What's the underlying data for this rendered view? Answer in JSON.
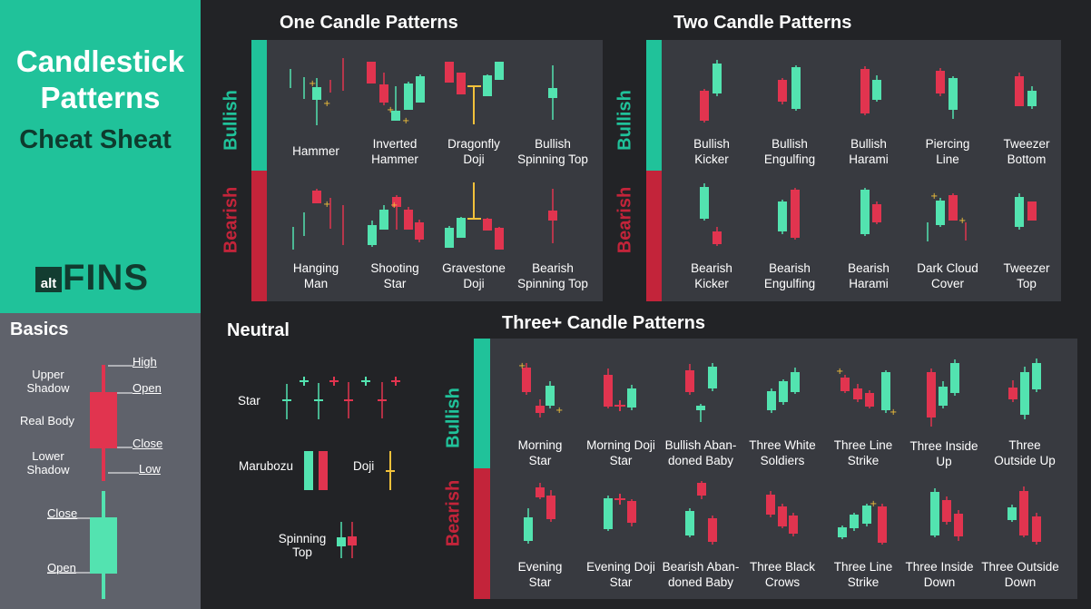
{
  "brand": {
    "title_line1": "Candlestick",
    "title_line2": "Patterns",
    "subtitle": "Cheat Sheat",
    "logo_small": "alt",
    "logo_large": "FINS"
  },
  "colors": {
    "bull": "#53e3b0",
    "bear": "#e1344f",
    "teal": "#20c29a",
    "red": "#c3243a",
    "panel": "#383a40",
    "bg": "#222326",
    "star": "#f2c13a"
  },
  "sections": {
    "one": "One Candle Patterns",
    "two": "Two Candle Patterns",
    "three": "Three+ Candle Patterns",
    "neutral": "Neutral",
    "basics": "Basics"
  },
  "side_labels": {
    "bullish": "Bullish",
    "bearish": "Bearish"
  },
  "one_candle": {
    "bullish": [
      "Hammer",
      "Inverted\nHammer",
      "Dragonfly\nDoji",
      "Bullish\nSpinning Top"
    ],
    "bearish": [
      "Hanging\nMan",
      "Shooting\nStar",
      "Gravestone\nDoji",
      "Bearish\nSpinning Top"
    ]
  },
  "two_candle": {
    "bullish": [
      "Bullish\nKicker",
      "Bullish\nEngulfing",
      "Bullish\nHarami",
      "Piercing\nLine",
      "Tweezer\nBottom"
    ],
    "bearish": [
      "Bearish\nKicker",
      "Bearish\nEngulfing",
      "Bearish\nHarami",
      "Dark Cloud\nCover",
      "Tweezer\nTop"
    ]
  },
  "three_candle": {
    "bullish": [
      "Morning\nStar",
      "Morning Doji\nStar",
      "Bullish Aban-\ndoned Baby",
      "Three White\nSoldiers",
      "Three Line\nStrike",
      "Three Inside\nUp",
      "Three\nOutside Up"
    ],
    "bearish": [
      "Evening\nStar",
      "Evening Doji\nStar",
      "Bearish Aban-\ndoned Baby",
      "Three Black\nCrows",
      "Three Line\nStrike",
      "Three Inside\nDown",
      "Three Outside\nDown"
    ]
  },
  "neutral": {
    "star": "Star",
    "marubozu": "Marubozu",
    "doji": "Doji",
    "spinning": "Spinning\nTop"
  },
  "basics": {
    "upper_shadow": "Upper\nShadow",
    "real_body": "Real Body",
    "lower_shadow": "Lower\nShadow",
    "high": "High",
    "open": "Open",
    "close": "Close",
    "low": "Low",
    "close2": "Close",
    "open2": "Open"
  }
}
